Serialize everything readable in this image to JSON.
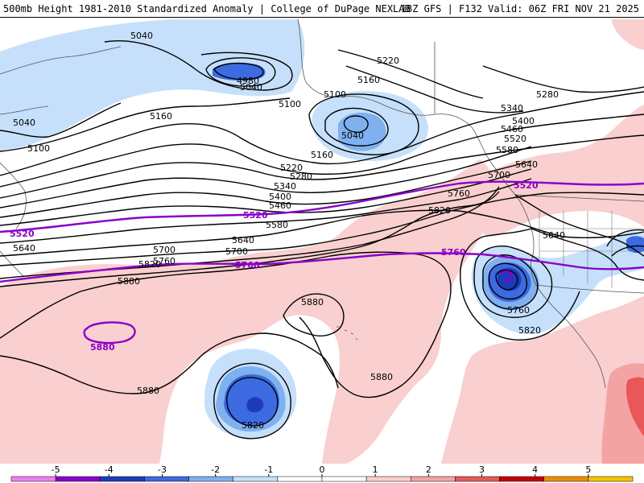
{
  "header": {
    "left_title": "500mb Height 1981-2010 Standardized Anomaly | College of DuPage NEXLAB",
    "right_title": "18Z GFS | F132 Valid: 06Z FRI NOV 21 2025"
  },
  "map": {
    "contour_labels": [
      {
        "text": "5040"
      },
      {
        "text": "4980"
      },
      {
        "text": "5040"
      },
      {
        "text": "5040"
      },
      {
        "text": "5100"
      },
      {
        "text": "5100"
      },
      {
        "text": "5100"
      },
      {
        "text": "5040"
      },
      {
        "text": "5160"
      },
      {
        "text": "5160"
      },
      {
        "text": "5160"
      },
      {
        "text": "5220"
      },
      {
        "text": "5220"
      },
      {
        "text": "5280"
      },
      {
        "text": "5280"
      },
      {
        "text": "5340"
      },
      {
        "text": "5340"
      },
      {
        "text": "5400"
      },
      {
        "text": "5400"
      },
      {
        "text": "5460"
      },
      {
        "text": "5460"
      },
      {
        "text": "5520"
      },
      {
        "text": "5580"
      },
      {
        "text": "5580"
      },
      {
        "text": "5640"
      },
      {
        "text": "5640"
      },
      {
        "text": "5640"
      },
      {
        "text": "5640"
      },
      {
        "text": "5700"
      },
      {
        "text": "5700"
      },
      {
        "text": "5700"
      },
      {
        "text": "5760"
      },
      {
        "text": "5760"
      },
      {
        "text": "5760"
      },
      {
        "text": "5820"
      },
      {
        "text": "5820"
      },
      {
        "text": "5820"
      },
      {
        "text": "5820"
      },
      {
        "text": "5880"
      },
      {
        "text": "5880"
      },
      {
        "text": "5880"
      },
      {
        "text": "5880"
      }
    ],
    "highlight_labels": [
      {
        "text": "5520"
      },
      {
        "text": "5520"
      },
      {
        "text": "5520"
      },
      {
        "text": "5760"
      },
      {
        "text": "5760"
      },
      {
        "text": "5880"
      }
    ],
    "colors": {
      "neg1": "#c6e0fb",
      "neg2": "#7fb0f0",
      "neg3": "#3c6ae0",
      "neg4": "#1d3bb8",
      "pos1": "#f9cfcf",
      "pos2": "#f4a3a3",
      "pos3": "#e85858",
      "highlight": "#8a00c9"
    }
  },
  "colorbar": {
    "ticks": [
      "-5",
      "-4",
      "-3",
      "-2",
      "-1",
      "0",
      "1",
      "2",
      "3",
      "4",
      "5"
    ],
    "colors": [
      "#f07ff0",
      "#8a00c9",
      "#1d3bb8",
      "#3c6ae0",
      "#7fb0f0",
      "#c6e0fb",
      "#ffffff",
      "#ffffff",
      "#f9cfcf",
      "#f4a3a3",
      "#e85858",
      "#c80000",
      "#f08c00",
      "#f5c400"
    ]
  }
}
